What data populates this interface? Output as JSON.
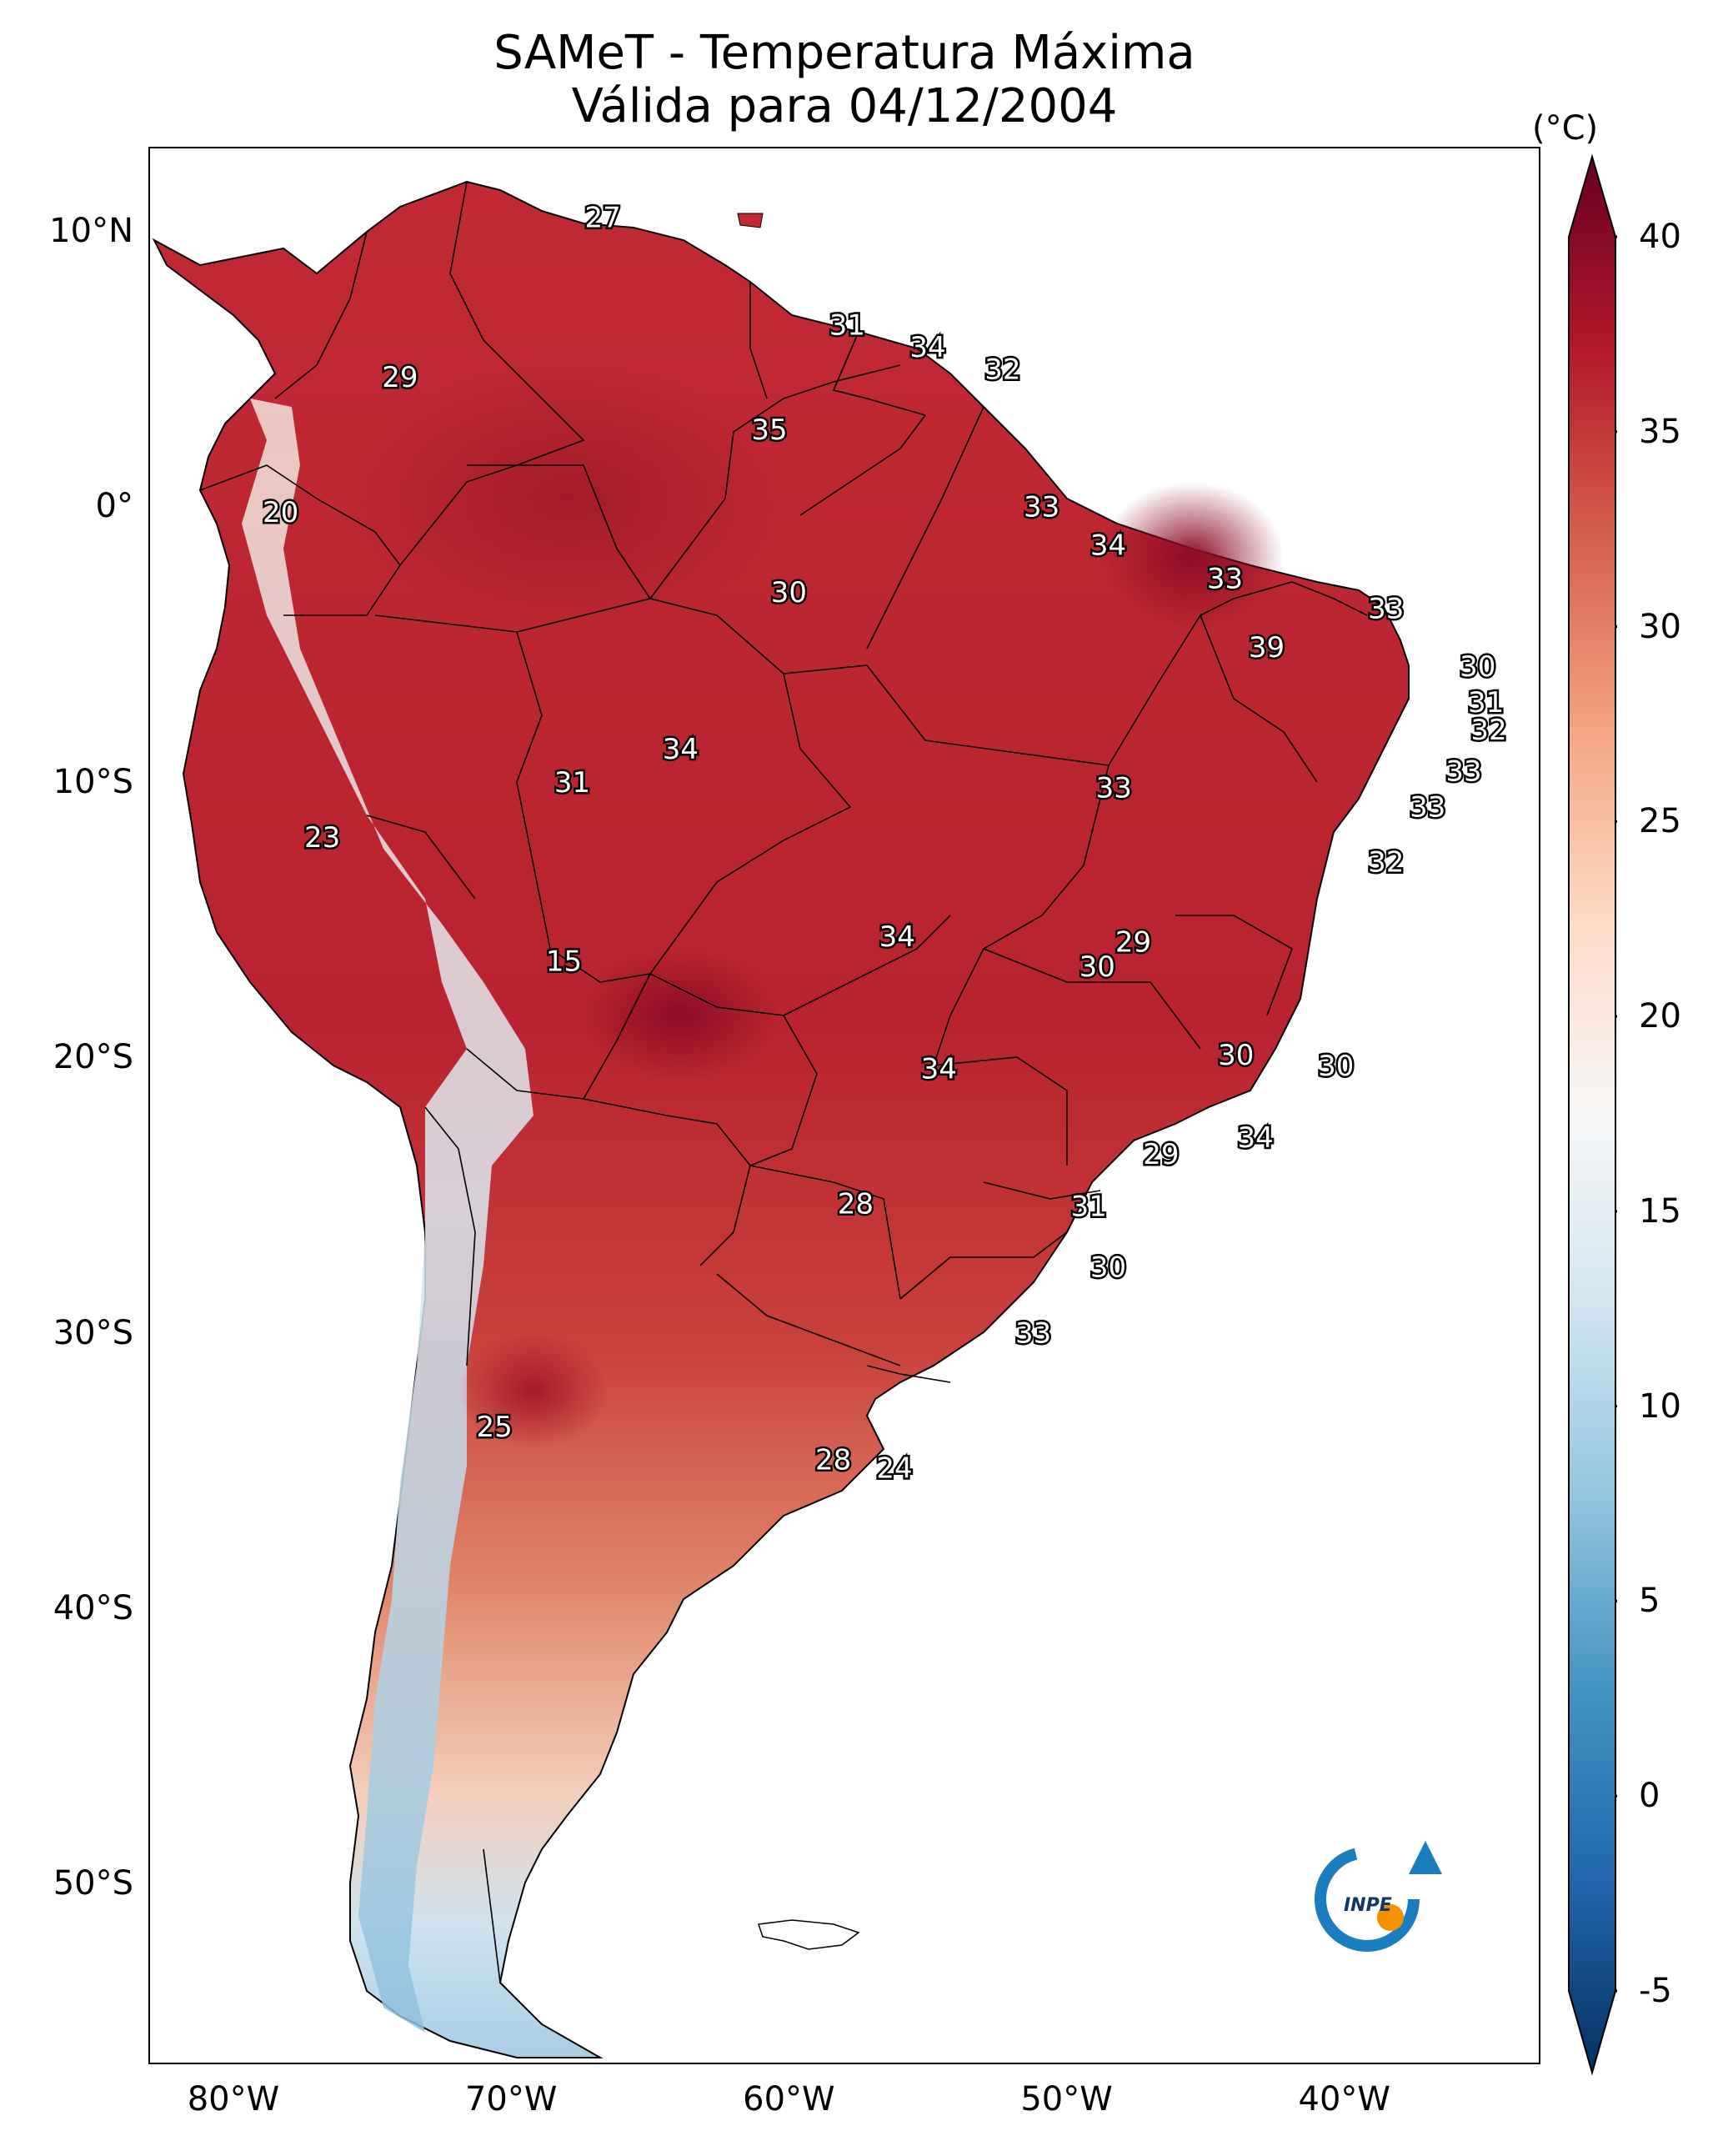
{
  "title": {
    "line1": "SAMeT - Temperatura Máxima",
    "line2": "Válida para 04/12/2004"
  },
  "map": {
    "lon_range": [
      -83,
      -33
    ],
    "lat_range": [
      -56.5,
      13
    ],
    "lat_ticks": [
      {
        "value": 10,
        "label": "10°N"
      },
      {
        "value": 0,
        "label": "0°"
      },
      {
        "value": -10,
        "label": "10°S"
      },
      {
        "value": -20,
        "label": "20°S"
      },
      {
        "value": -30,
        "label": "30°S"
      },
      {
        "value": -40,
        "label": "40°S"
      },
      {
        "value": -50,
        "label": "50°S"
      }
    ],
    "lon_ticks": [
      {
        "value": -80,
        "label": "80°W"
      },
      {
        "value": -70,
        "label": "70°W"
      },
      {
        "value": -60,
        "label": "60°W"
      },
      {
        "value": -50,
        "label": "50°W"
      },
      {
        "value": -40,
        "label": "40°W"
      }
    ],
    "station_values": [
      {
        "lon": -66.7,
        "lat": 10.5,
        "text": "27"
      },
      {
        "lon": -74.0,
        "lat": 4.7,
        "text": "29"
      },
      {
        "lon": -57.9,
        "lat": 6.6,
        "text": "31"
      },
      {
        "lon": -55.0,
        "lat": 5.8,
        "text": "34"
      },
      {
        "lon": -52.3,
        "lat": 5.0,
        "text": "32"
      },
      {
        "lon": -60.7,
        "lat": 2.8,
        "text": "35"
      },
      {
        "lon": -78.3,
        "lat": -0.2,
        "text": "20"
      },
      {
        "lon": -50.9,
        "lat": 0.0,
        "text": "33"
      },
      {
        "lon": -48.5,
        "lat": -1.4,
        "text": "34"
      },
      {
        "lon": -44.3,
        "lat": -2.6,
        "text": "33"
      },
      {
        "lon": -38.5,
        "lat": -3.7,
        "text": "33"
      },
      {
        "lon": -60.0,
        "lat": -3.1,
        "text": "30"
      },
      {
        "lon": -42.8,
        "lat": -5.1,
        "text": "39"
      },
      {
        "lon": -35.2,
        "lat": -5.8,
        "text": "30"
      },
      {
        "lon": -34.9,
        "lat": -7.1,
        "text": "31"
      },
      {
        "lon": -34.8,
        "lat": -8.1,
        "text": "32"
      },
      {
        "lon": -35.7,
        "lat": -9.6,
        "text": "33"
      },
      {
        "lon": -37.0,
        "lat": -10.9,
        "text": "33"
      },
      {
        "lon": -38.5,
        "lat": -12.9,
        "text": "32"
      },
      {
        "lon": -63.9,
        "lat": -8.8,
        "text": "34"
      },
      {
        "lon": -67.8,
        "lat": -10.0,
        "text": "31"
      },
      {
        "lon": -48.3,
        "lat": -10.2,
        "text": "33"
      },
      {
        "lon": -76.8,
        "lat": -12.0,
        "text": "23"
      },
      {
        "lon": -68.1,
        "lat": -16.5,
        "text": "15"
      },
      {
        "lon": -56.1,
        "lat": -15.6,
        "text": "34"
      },
      {
        "lon": -47.6,
        "lat": -15.8,
        "text": "29"
      },
      {
        "lon": -48.9,
        "lat": -16.7,
        "text": "30"
      },
      {
        "lon": -43.9,
        "lat": -19.9,
        "text": "30"
      },
      {
        "lon": -40.3,
        "lat": -20.3,
        "text": "30"
      },
      {
        "lon": -54.6,
        "lat": -20.4,
        "text": "34"
      },
      {
        "lon": -43.2,
        "lat": -22.9,
        "text": "34"
      },
      {
        "lon": -46.6,
        "lat": -23.5,
        "text": "29"
      },
      {
        "lon": -57.6,
        "lat": -25.3,
        "text": "28"
      },
      {
        "lon": -49.2,
        "lat": -25.4,
        "text": "31"
      },
      {
        "lon": -48.5,
        "lat": -27.6,
        "text": "30"
      },
      {
        "lon": -51.2,
        "lat": -30.0,
        "text": "33"
      },
      {
        "lon": -70.6,
        "lat": -33.4,
        "text": "25"
      },
      {
        "lon": -58.4,
        "lat": -34.6,
        "text": "28"
      },
      {
        "lon": -56.2,
        "lat": -34.9,
        "text": "24"
      }
    ]
  },
  "colorbar": {
    "unit": "(°C)",
    "min": -5,
    "max": 40,
    "ticks": [
      {
        "value": 40,
        "label": "40"
      },
      {
        "value": 35,
        "label": "35"
      },
      {
        "value": 30,
        "label": "30"
      },
      {
        "value": 25,
        "label": "25"
      },
      {
        "value": 20,
        "label": "20"
      },
      {
        "value": 15,
        "label": "15"
      },
      {
        "value": 10,
        "label": "10"
      },
      {
        "value": 5,
        "label": "5"
      },
      {
        "value": 0,
        "label": "0"
      },
      {
        "value": -5,
        "label": "-5"
      }
    ],
    "colors": [
      "#053061",
      "#2166ac",
      "#4393c3",
      "#92c5de",
      "#d1e5f0",
      "#f7f7f7",
      "#fddbc7",
      "#f4a582",
      "#d6604d",
      "#b2182b",
      "#67001f"
    ]
  },
  "logo": {
    "text": "INPE",
    "colors": {
      "ring": "#1a7dc0",
      "dot": "#f39200"
    }
  }
}
